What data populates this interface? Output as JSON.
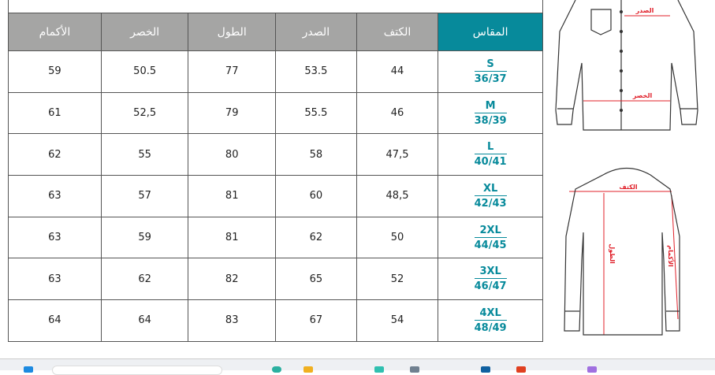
{
  "table": {
    "headers": [
      "الأكمام",
      "الخصر",
      "الطول",
      "الصدر",
      "الكتف",
      "المقاس"
    ],
    "rows": [
      {
        "size": "S",
        "eu": "36/37",
        "shoulder": "44",
        "chest": "53.5",
        "length": "77",
        "waist": "50.5",
        "sleeve": "59"
      },
      {
        "size": "M",
        "eu": "38/39",
        "shoulder": "46",
        "chest": "55.5",
        "length": "79",
        "waist": "52,5",
        "sleeve": "61"
      },
      {
        "size": "L",
        "eu": "40/41",
        "shoulder": "47,5",
        "chest": "58",
        "length": "80",
        "waist": "55",
        "sleeve": "62"
      },
      {
        "size": "XL",
        "eu": "42/43",
        "shoulder": "48,5",
        "chest": "60",
        "length": "81",
        "waist": "57",
        "sleeve": "63"
      },
      {
        "size": "2XL",
        "eu": "44/45",
        "shoulder": "50",
        "chest": "62",
        "length": "81",
        "waist": "59",
        "sleeve": "63"
      },
      {
        "size": "3XL",
        "eu": "46/47",
        "shoulder": "52",
        "chest": "65",
        "length": "82",
        "waist": "62",
        "sleeve": "63"
      },
      {
        "size": "4XL",
        "eu": "48/49",
        "shoulder": "54",
        "chest": "67",
        "length": "83",
        "waist": "64",
        "sleeve": "64"
      }
    ]
  },
  "diagram": {
    "chest": "الصدر",
    "waist": "الخصر",
    "shoulder": "الكتف",
    "length": "الطول",
    "sleeve": "الأكمام",
    "color": "#e0202a"
  },
  "colors": {
    "size_header": "#078a9b",
    "header": "#a5a5a4"
  }
}
